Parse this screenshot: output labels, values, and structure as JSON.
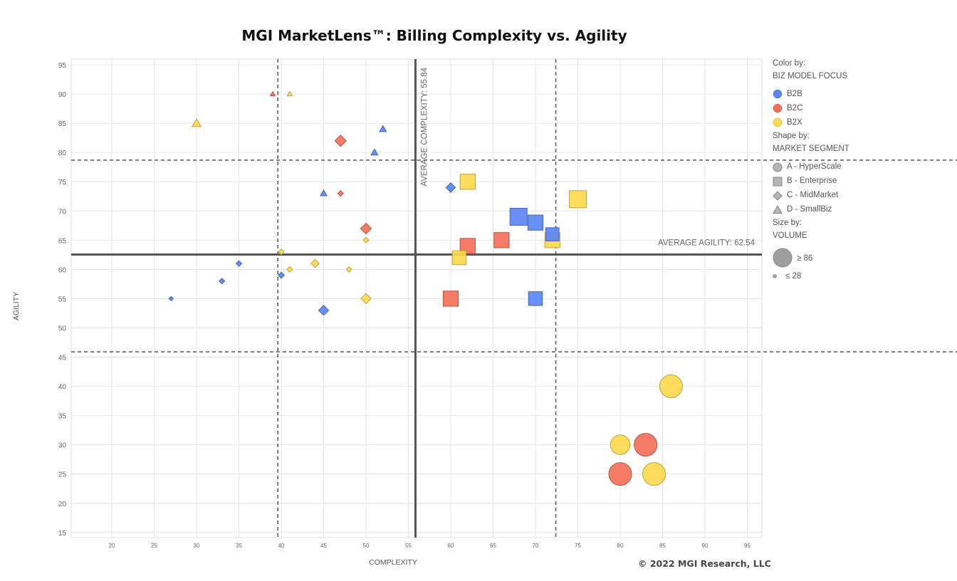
{
  "chart_data": {
    "type": "scatter",
    "title": "MGI MarketLens™: Billing Complexity vs. Agility",
    "xlabel": "COMPLEXITY",
    "ylabel": "AGILITY",
    "xlim": [
      15,
      97
    ],
    "ylim": [
      14,
      96
    ],
    "x_ticks": [
      20,
      25,
      30,
      35,
      40,
      45,
      50,
      55,
      60,
      65,
      70,
      75,
      80,
      85,
      90,
      95
    ],
    "y_ticks": [
      15,
      20,
      25,
      30,
      35,
      40,
      45,
      50,
      55,
      60,
      65,
      70,
      75,
      80,
      85,
      90,
      95
    ],
    "grid": true,
    "legend_position": "right",
    "average_complexity": {
      "value": 55.84,
      "label": "AVERAGE COMPLEXITY: 55.84"
    },
    "average_agility": {
      "value": 62.54,
      "label": "AVERAGE AGILITY: 62.54"
    },
    "dashed_reference_x": [
      39.6,
      72.4
    ],
    "dashed_reference_y": [
      78.7,
      45.9
    ],
    "colors": {
      "B2B": "#5b84f6",
      "B2C": "#f5705a",
      "B2X": "#fdd94e"
    },
    "points": [
      {
        "x": 39,
        "y": 90,
        "focus": "B2C",
        "segment": "D",
        "volume": 30
      },
      {
        "x": 41,
        "y": 90,
        "focus": "B2X",
        "segment": "D",
        "volume": 30
      },
      {
        "x": 30,
        "y": 85,
        "focus": "B2X",
        "segment": "D",
        "volume": 42
      },
      {
        "x": 52,
        "y": 84,
        "focus": "B2B",
        "segment": "D",
        "volume": 36
      },
      {
        "x": 51,
        "y": 80,
        "focus": "B2B",
        "segment": "D",
        "volume": 36
      },
      {
        "x": 45,
        "y": 73,
        "focus": "B2B",
        "segment": "D",
        "volume": 35
      },
      {
        "x": 47,
        "y": 82,
        "focus": "B2C",
        "segment": "C",
        "volume": 50
      },
      {
        "x": 47,
        "y": 73,
        "focus": "B2C",
        "segment": "C",
        "volume": 32
      },
      {
        "x": 50,
        "y": 67,
        "focus": "B2C",
        "segment": "C",
        "volume": 48
      },
      {
        "x": 50,
        "y": 65,
        "focus": "B2X",
        "segment": "C",
        "volume": 32
      },
      {
        "x": 40,
        "y": 63,
        "focus": "B2X",
        "segment": "C",
        "volume": 32
      },
      {
        "x": 35,
        "y": 61,
        "focus": "B2B",
        "segment": "C",
        "volume": 32
      },
      {
        "x": 44,
        "y": 61,
        "focus": "B2X",
        "segment": "C",
        "volume": 40
      },
      {
        "x": 41,
        "y": 60,
        "focus": "B2X",
        "segment": "C",
        "volume": 32
      },
      {
        "x": 48,
        "y": 60,
        "focus": "B2X",
        "segment": "C",
        "volume": 32
      },
      {
        "x": 40,
        "y": 59,
        "focus": "B2B",
        "segment": "C",
        "volume": 34
      },
      {
        "x": 33,
        "y": 58,
        "focus": "B2B",
        "segment": "C",
        "volume": 32
      },
      {
        "x": 27,
        "y": 55,
        "focus": "B2B",
        "segment": "C",
        "volume": 28
      },
      {
        "x": 50,
        "y": 55,
        "focus": "B2X",
        "segment": "C",
        "volume": 46
      },
      {
        "x": 45,
        "y": 53,
        "focus": "B2B",
        "segment": "C",
        "volume": 46
      },
      {
        "x": 60,
        "y": 74,
        "focus": "B2B",
        "segment": "C",
        "volume": 44
      },
      {
        "x": 62,
        "y": 75,
        "focus": "B2X",
        "segment": "B",
        "volume": 62
      },
      {
        "x": 68,
        "y": 69,
        "focus": "B2B",
        "segment": "B",
        "volume": 68
      },
      {
        "x": 70,
        "y": 68,
        "focus": "B2B",
        "segment": "B",
        "volume": 62
      },
      {
        "x": 75,
        "y": 72,
        "focus": "B2X",
        "segment": "B",
        "volume": 68
      },
      {
        "x": 72,
        "y": 65,
        "focus": "B2X",
        "segment": "B",
        "volume": 62
      },
      {
        "x": 72,
        "y": 66,
        "focus": "B2B",
        "segment": "B",
        "volume": 56
      },
      {
        "x": 66,
        "y": 65,
        "focus": "B2C",
        "segment": "B",
        "volume": 62
      },
      {
        "x": 62,
        "y": 64,
        "focus": "B2C",
        "segment": "B",
        "volume": 62
      },
      {
        "x": 61,
        "y": 62,
        "focus": "B2X",
        "segment": "B",
        "volume": 58
      },
      {
        "x": 60,
        "y": 55,
        "focus": "B2C",
        "segment": "B",
        "volume": 62
      },
      {
        "x": 70,
        "y": 55,
        "focus": "B2B",
        "segment": "B",
        "volume": 58
      },
      {
        "x": 86,
        "y": 40,
        "focus": "B2X",
        "segment": "A",
        "volume": 86
      },
      {
        "x": 83,
        "y": 30,
        "focus": "B2C",
        "segment": "A",
        "volume": 86
      },
      {
        "x": 80,
        "y": 30,
        "focus": "B2X",
        "segment": "A",
        "volume": 76
      },
      {
        "x": 80,
        "y": 25,
        "focus": "B2C",
        "segment": "A",
        "volume": 86
      },
      {
        "x": 84,
        "y": 25,
        "focus": "B2X",
        "segment": "A",
        "volume": 86
      }
    ]
  },
  "legend": {
    "color_by": "Color by:",
    "color_field": "BIZ MODEL  FOCUS",
    "colors": [
      {
        "label": "B2B",
        "color": "#5b84f6"
      },
      {
        "label": "B2C",
        "color": "#f5705a"
      },
      {
        "label": "B2X",
        "color": "#fdd94e"
      }
    ],
    "shape_by": "Shape by:",
    "shape_field": "MARKET  SEGMENT",
    "shapes": [
      {
        "label": "A - HyperScale",
        "shape": "circle"
      },
      {
        "label": "B - Enterprise",
        "shape": "square"
      },
      {
        "label": "C - MidMarket",
        "shape": "diamond"
      },
      {
        "label": "D - SmallBiz",
        "shape": "triangle"
      }
    ],
    "size_by": "Size by:",
    "size_field": "VOLUME",
    "size_max": "≥ 86",
    "size_min": "≤ 28"
  },
  "copyright": "© 2022  MGI Research,  LLC"
}
